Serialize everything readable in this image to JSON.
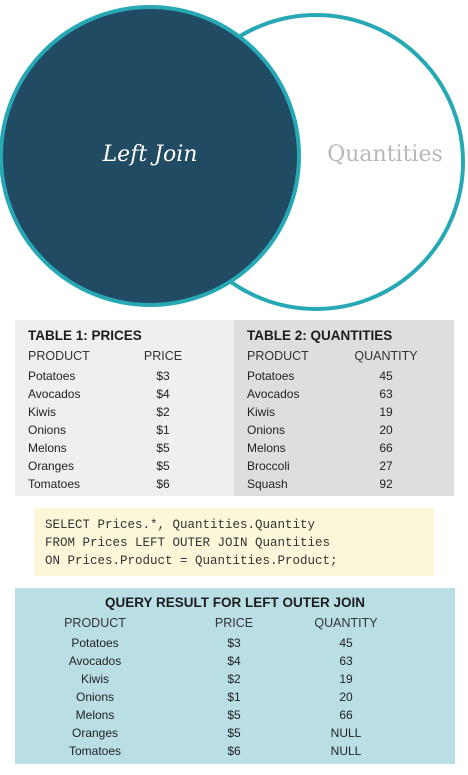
{
  "venn": {
    "left_label": "Left Join",
    "right_label": "Quantities",
    "colors": {
      "left_fill": "#214a63",
      "ring": "#27a9b5",
      "right_fill": "#ffffff",
      "right_label": "#b8b8b8"
    }
  },
  "table1": {
    "title": "TABLE 1: PRICES",
    "headers": [
      "PRODUCT",
      "PRICE"
    ],
    "rows": [
      [
        "Potatoes",
        "$3"
      ],
      [
        "Avocados",
        "$4"
      ],
      [
        "Kiwis",
        "$2"
      ],
      [
        "Onions",
        "$1"
      ],
      [
        "Melons",
        "$5"
      ],
      [
        "Oranges",
        "$5"
      ],
      [
        "Tomatoes",
        "$6"
      ]
    ]
  },
  "table2": {
    "title": "TABLE 2: QUANTITIES",
    "headers": [
      "PRODUCT",
      "QUANTITY"
    ],
    "rows": [
      [
        "Potatoes",
        "45"
      ],
      [
        "Avocados",
        "63"
      ],
      [
        "Kiwis",
        "19"
      ],
      [
        "Onions",
        "20"
      ],
      [
        "Melons",
        "66"
      ],
      [
        "Broccoli",
        "27"
      ],
      [
        "Squash",
        "92"
      ]
    ]
  },
  "sql": {
    "lines": [
      "SELECT Prices.*, Quantities.Quantity",
      "FROM Prices LEFT OUTER JOIN Quantities",
      "ON Prices.Product = Quantities.Product;"
    ]
  },
  "result": {
    "title": "QUERY RESULT FOR LEFT OUTER JOIN",
    "headers": [
      "PRODUCT",
      "PRICE",
      "QUANTITY"
    ],
    "rows": [
      [
        "Potatoes",
        "$3",
        "45"
      ],
      [
        "Avocados",
        "$4",
        "63"
      ],
      [
        "Kiwis",
        "$2",
        "19"
      ],
      [
        "Onions",
        "$1",
        "20"
      ],
      [
        "Melons",
        "$5",
        "66"
      ],
      [
        "Oranges",
        "$5",
        "NULL"
      ],
      [
        "Tomatoes",
        "$6",
        "NULL"
      ]
    ]
  }
}
